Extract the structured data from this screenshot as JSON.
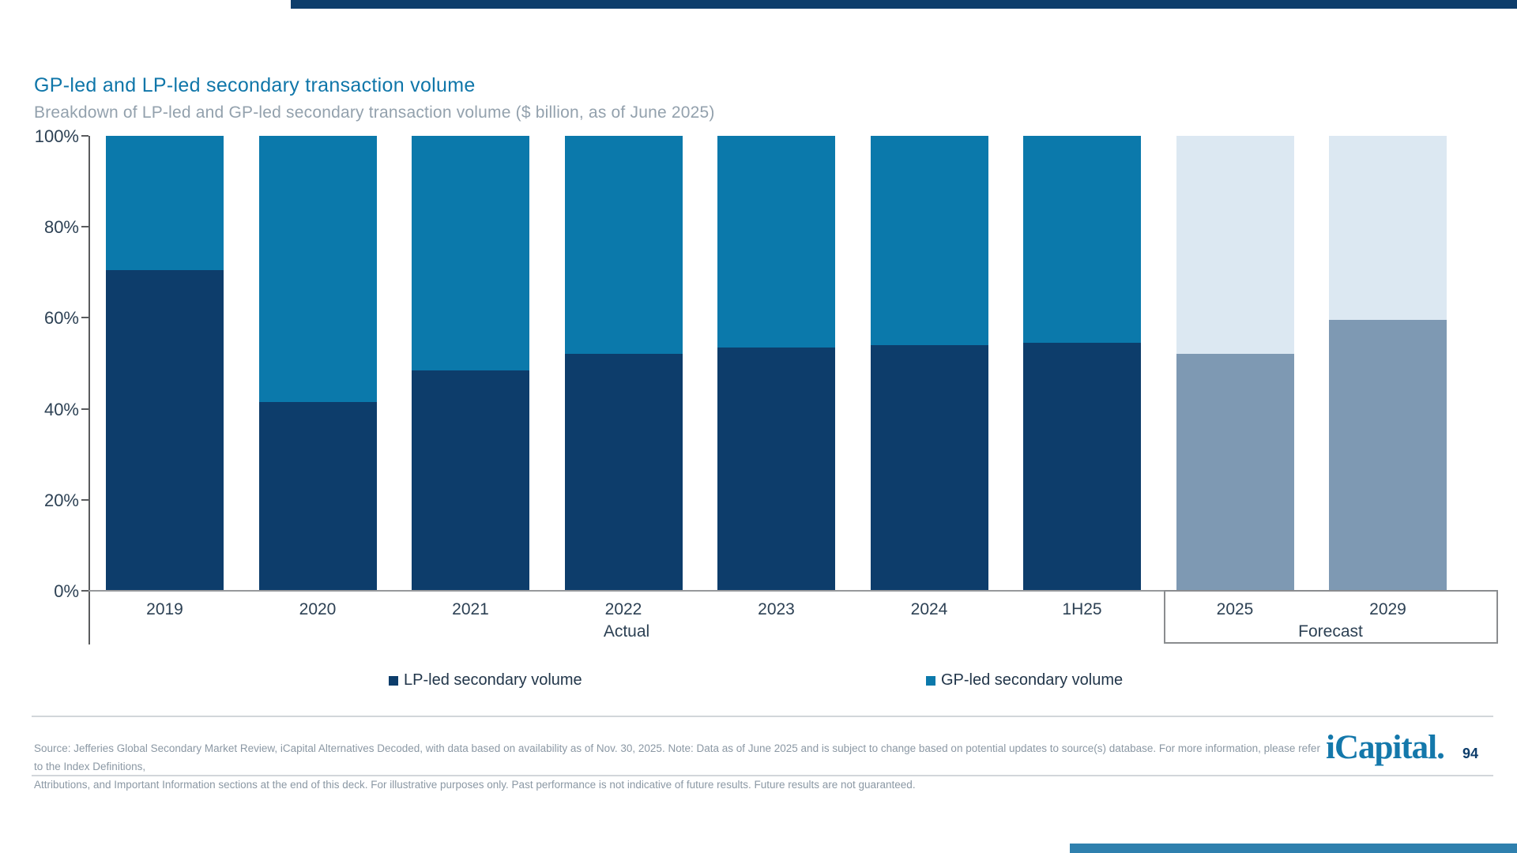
{
  "slide": {
    "title": "GP-led and LP-led secondary transaction volume",
    "subtitle": "Breakdown of LP-led and GP-led secondary transaction volume ($ billion, as of June 2025)",
    "logo_text": "iCapital.",
    "page_number": "94"
  },
  "chart_data": {
    "type": "bar",
    "stacked": true,
    "percent": true,
    "title": "GP-led and LP-led secondary transaction volume",
    "categories": [
      "2019",
      "2020",
      "2021",
      "2022",
      "2023",
      "2024",
      "1H25",
      "2025",
      "2029"
    ],
    "series": [
      {
        "name": "LP-led secondary volume",
        "values": [
          70.5,
          41.5,
          48.5,
          52.0,
          53.5,
          54.0,
          54.5,
          52.0,
          59.5
        ]
      },
      {
        "name": "GP-led secondary volume",
        "values": [
          29.5,
          58.5,
          51.5,
          48.0,
          46.5,
          46.0,
          45.5,
          48.0,
          40.5
        ]
      }
    ],
    "forecast_start_index": 7,
    "y_ticks": [
      "100%",
      "80%",
      "60%",
      "40%",
      "20%",
      "0%"
    ],
    "ylim": [
      0,
      100
    ],
    "grid": false,
    "legend_position": "bottom",
    "group_labels": {
      "actual": "Actual",
      "forecast": "Forecast"
    },
    "colors": {
      "lp_actual": "#0d3d6b",
      "gp_actual": "#0b79ab",
      "lp_forecast": "#7e99b3",
      "gp_forecast": "#dce8f2"
    }
  },
  "legend": [
    {
      "label": "LP-led secondary volume",
      "color": "#0d3d6b"
    },
    {
      "label": "GP-led secondary volume",
      "color": "#0b79ab"
    }
  ],
  "footer": {
    "lines": [
      "Source: Jefferies Global Secondary Market Review, iCapital Alternatives Decoded, with data based on availability as of Nov. 30, 2025. Note: Data as of June 2025 and is subject to change based on potential updates to source(s) database. For more information, please refer to the Index Definitions,",
      "Attributions, and Important Information sections at the end of this deck. For illustrative purposes only. Past performance is not indicative of future results. Future results are not guaranteed."
    ]
  }
}
